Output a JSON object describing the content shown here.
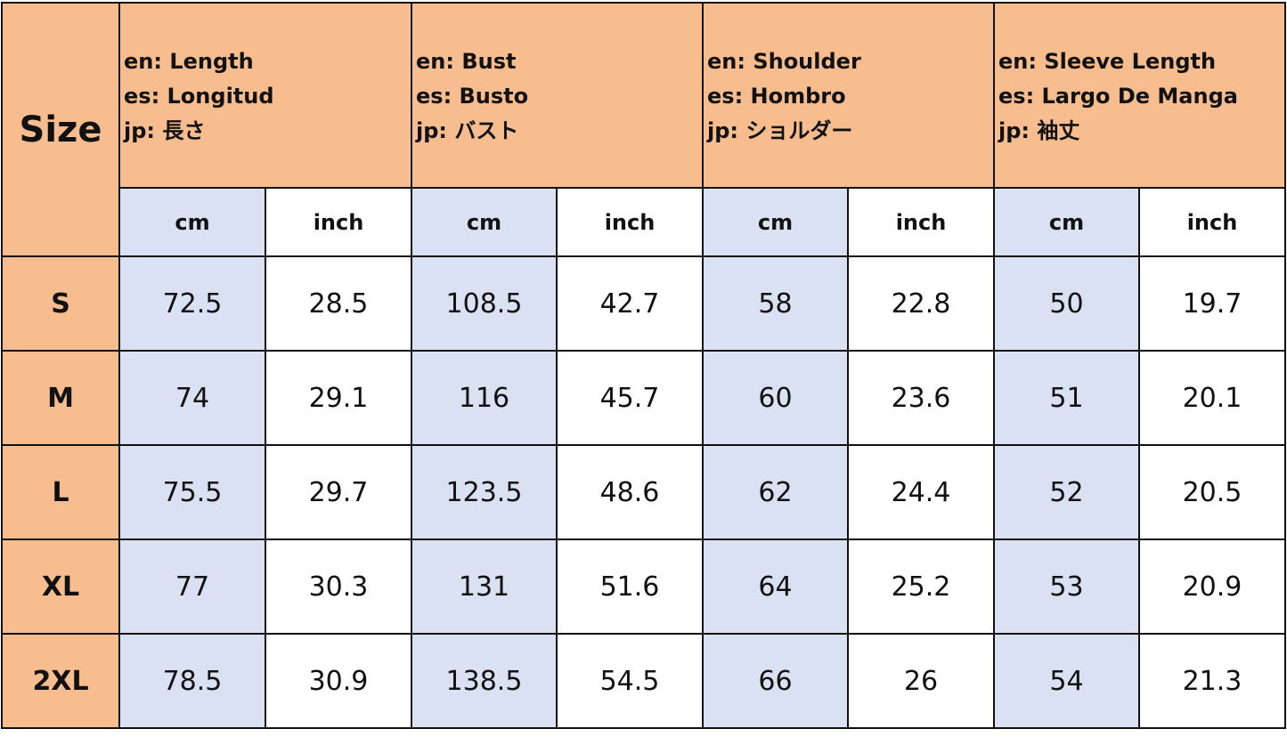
{
  "table": {
    "size_header": "Size",
    "groups": [
      {
        "en": "en: Length",
        "es": "es: Longitud",
        "jp": "jp: 長さ"
      },
      {
        "en": "en: Bust",
        "es": "es: Busto",
        "jp": "jp: バスト"
      },
      {
        "en": "en: Shoulder",
        "es": "es: Hombro",
        "jp": "jp: ショルダー"
      },
      {
        "en": "en: Sleeve Length",
        "es": "es: Largo De Manga",
        "jp": "jp: 袖丈"
      }
    ],
    "units": {
      "cm": "cm",
      "inch": "inch"
    },
    "rows": [
      {
        "size": "S",
        "values": [
          "72.5",
          "28.5",
          "108.5",
          "42.7",
          "58",
          "22.8",
          "50",
          "19.7"
        ]
      },
      {
        "size": "M",
        "values": [
          "74",
          "29.1",
          "116",
          "45.7",
          "60",
          "23.6",
          "51",
          "20.1"
        ]
      },
      {
        "size": "L",
        "values": [
          "75.5",
          "29.7",
          "123.5",
          "48.6",
          "62",
          "24.4",
          "52",
          "20.5"
        ]
      },
      {
        "size": "XL",
        "values": [
          "77",
          "30.3",
          "131",
          "51.6",
          "64",
          "25.2",
          "53",
          "20.9"
        ]
      },
      {
        "size": "2XL",
        "values": [
          "78.5",
          "30.9",
          "138.5",
          "54.5",
          "66",
          "26",
          "54",
          "21.3"
        ]
      }
    ]
  },
  "colors": {
    "header": "#F8BD8E",
    "cm_column": "#D9E1F2",
    "inch_column": "#FFFFFF"
  }
}
